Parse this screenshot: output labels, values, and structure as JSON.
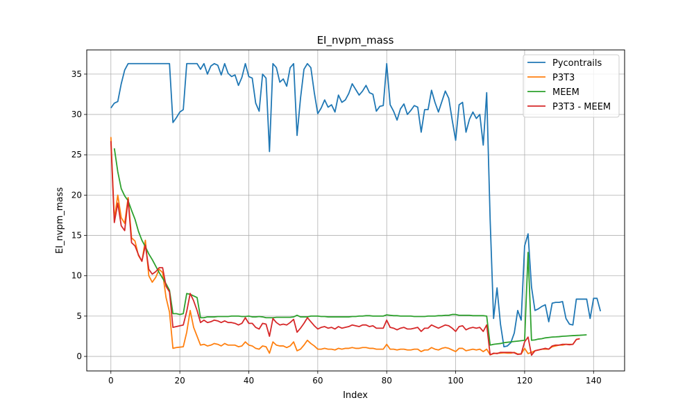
{
  "chart_data": {
    "type": "line",
    "title": "EI_nvpm_mass",
    "xlabel": "Index",
    "ylabel": "EI_nvpm_mass",
    "xlim": [
      -7,
      149
    ],
    "ylim": [
      -1.8,
      38.0
    ],
    "xticks": [
      0,
      20,
      40,
      60,
      80,
      100,
      120,
      140
    ],
    "yticks": [
      0,
      5,
      10,
      15,
      20,
      25,
      30,
      35
    ],
    "grid": true,
    "legend_position": "top-right",
    "series": [
      {
        "name": "Pycontrails",
        "color": "#1f77b4",
        "x_start": 0,
        "values": [
          30.8,
          31.4,
          31.6,
          33.8,
          35.5,
          36.3,
          36.3,
          36.3,
          36.3,
          36.3,
          36.3,
          36.3,
          36.3,
          36.3,
          36.3,
          36.3,
          36.3,
          36.3,
          29.0,
          29.6,
          30.3,
          30.6,
          36.3,
          36.3,
          36.3,
          36.3,
          35.6,
          36.3,
          35.0,
          36.0,
          36.3,
          36.1,
          34.9,
          36.3,
          35.1,
          34.7,
          34.9,
          33.6,
          34.6,
          36.3,
          34.7,
          34.5,
          31.4,
          30.4,
          35.0,
          34.5,
          25.4,
          36.3,
          35.8,
          34.0,
          34.4,
          33.5,
          35.8,
          36.3,
          27.4,
          32.0,
          35.6,
          36.3,
          35.8,
          32.7,
          30.1,
          30.8,
          31.8,
          30.9,
          31.2,
          30.3,
          32.4,
          31.5,
          31.8,
          32.6,
          33.8,
          33.1,
          32.4,
          32.9,
          33.6,
          32.7,
          32.5,
          30.4,
          31.0,
          31.1,
          36.3,
          31.2,
          30.4,
          29.3,
          30.7,
          31.3,
          30.0,
          30.5,
          31.1,
          30.9,
          27.8,
          30.6,
          30.6,
          33.0,
          31.5,
          30.3,
          31.6,
          32.9,
          32.0,
          29.3,
          26.8,
          31.2,
          31.5,
          27.8,
          29.4,
          30.3,
          29.5,
          30.0,
          26.2,
          32.7,
          17.0,
          4.7,
          8.5,
          4.0,
          1.2,
          1.3,
          1.7,
          2.9,
          5.7,
          4.5,
          13.7,
          15.2,
          8.6,
          5.7,
          5.9,
          6.2,
          6.4,
          4.3,
          6.6,
          6.7,
          6.7,
          6.8,
          4.7,
          4.0,
          3.9,
          7.1,
          7.1,
          7.1,
          7.1,
          4.7,
          7.2,
          7.2,
          5.6
        ]
      },
      {
        "name": "P3T3",
        "color": "#ff7f0e",
        "x_start": 0,
        "values": [
          27.2,
          17.0,
          20.0,
          17.2,
          16.5,
          19.7,
          14.7,
          14.3,
          12.5,
          11.8,
          14.4,
          10.0,
          9.2,
          9.8,
          10.8,
          10.4,
          7.3,
          5.5,
          1.0,
          1.1,
          1.15,
          1.2,
          3.0,
          5.7,
          3.6,
          2.5,
          1.4,
          1.5,
          1.3,
          1.4,
          1.6,
          1.5,
          1.3,
          1.6,
          1.4,
          1.4,
          1.4,
          1.2,
          1.3,
          1.8,
          1.4,
          1.3,
          1.0,
          0.9,
          1.3,
          1.2,
          0.4,
          1.8,
          1.4,
          1.3,
          1.3,
          1.1,
          1.3,
          1.8,
          0.7,
          0.9,
          1.4,
          2.0,
          1.6,
          1.3,
          0.9,
          0.9,
          1.0,
          0.9,
          0.9,
          0.8,
          1.0,
          0.9,
          1.0,
          1.0,
          1.1,
          1.0,
          1.0,
          1.1,
          1.1,
          1.0,
          1.0,
          0.9,
          0.9,
          0.9,
          1.5,
          0.9,
          0.9,
          0.8,
          0.9,
          0.9,
          0.8,
          0.8,
          0.9,
          0.9,
          0.6,
          0.8,
          0.8,
          1.1,
          0.9,
          0.8,
          1.0,
          1.1,
          1.0,
          0.8,
          0.6,
          1.0,
          1.0,
          0.7,
          0.8,
          0.9,
          0.8,
          0.9,
          0.6,
          0.9,
          0.2,
          0.35,
          0.4,
          0.4,
          0.45,
          0.4,
          0.4,
          0.5,
          0.3,
          0.3,
          1.0,
          0.35,
          0.5,
          0.7,
          0.8,
          0.9,
          0.9,
          0.9,
          1.2,
          1.3,
          1.4,
          1.4,
          1.5,
          1.5,
          1.5,
          2.1,
          2.2
        ]
      },
      {
        "name": "MEEM",
        "color": "#2ca02c",
        "x_start": 1,
        "values": [
          25.8,
          22.9,
          20.8,
          19.9,
          19.3,
          18.1,
          17.0,
          15.5,
          14.4,
          13.6,
          12.7,
          12.0,
          11.2,
          10.4,
          9.7,
          9.0,
          8.2,
          5.3,
          5.3,
          5.2,
          5.3,
          7.8,
          7.7,
          7.5,
          7.3,
          4.8,
          4.8,
          4.9,
          4.9,
          4.9,
          4.95,
          4.95,
          4.95,
          4.95,
          5.0,
          5.0,
          5.0,
          4.95,
          4.95,
          5.0,
          4.9,
          4.9,
          4.95,
          4.9,
          4.8,
          4.8,
          4.8,
          4.85,
          4.85,
          4.85,
          4.85,
          4.85,
          4.9,
          5.1,
          4.9,
          4.9,
          4.9,
          5.0,
          5.0,
          5.0,
          4.95,
          4.95,
          4.9,
          4.9,
          4.9,
          4.9,
          4.9,
          4.9,
          4.9,
          4.95,
          4.95,
          5.0,
          5.0,
          5.05,
          5.05,
          5.0,
          5.0,
          5.0,
          5.0,
          5.15,
          5.1,
          5.05,
          5.05,
          5.0,
          5.0,
          5.0,
          5.0,
          4.95,
          4.95,
          4.95,
          4.95,
          5.0,
          5.0,
          5.0,
          5.05,
          5.05,
          5.1,
          5.1,
          5.2,
          5.2,
          5.1,
          5.1,
          5.1,
          5.1,
          5.05,
          5.05,
          5.05,
          5.05,
          5.0,
          1.4,
          1.5,
          1.55,
          1.6,
          1.7,
          1.75,
          1.8,
          1.85,
          1.9,
          1.95,
          2.0,
          12.9,
          2.0,
          2.05,
          2.15,
          2.2,
          2.3,
          2.35,
          2.4,
          2.42,
          2.45,
          2.5,
          2.52,
          2.55,
          2.58,
          2.6,
          2.62,
          2.65,
          2.68
        ]
      },
      {
        "name": "P3T3 - MEEM",
        "color": "#d62728",
        "x_start": 0,
        "values": [
          26.7,
          16.6,
          19.0,
          16.2,
          15.6,
          19.5,
          14.1,
          13.7,
          12.6,
          11.8,
          13.8,
          10.8,
          10.2,
          10.5,
          11.0,
          11.0,
          8.7,
          8.0,
          3.6,
          3.7,
          3.8,
          3.9,
          5.6,
          7.8,
          6.9,
          5.7,
          4.2,
          4.5,
          4.2,
          4.3,
          4.5,
          4.4,
          4.2,
          4.4,
          4.2,
          4.2,
          4.1,
          3.9,
          4.1,
          4.8,
          4.1,
          4.1,
          3.6,
          3.4,
          4.1,
          4.0,
          2.5,
          4.7,
          4.2,
          3.9,
          4.0,
          3.9,
          4.2,
          4.6,
          3.0,
          3.5,
          4.1,
          4.8,
          4.3,
          3.8,
          3.4,
          3.6,
          3.7,
          3.5,
          3.6,
          3.4,
          3.7,
          3.5,
          3.6,
          3.7,
          3.9,
          3.8,
          3.7,
          3.9,
          3.9,
          3.7,
          3.8,
          3.5,
          3.5,
          3.5,
          4.5,
          3.6,
          3.5,
          3.3,
          3.5,
          3.6,
          3.4,
          3.4,
          3.5,
          3.6,
          3.1,
          3.5,
          3.5,
          3.9,
          3.7,
          3.5,
          3.7,
          3.9,
          3.8,
          3.5,
          3.1,
          3.7,
          3.8,
          3.3,
          3.5,
          3.6,
          3.5,
          3.6,
          3.1,
          3.9,
          0.2,
          0.4,
          0.35,
          0.5,
          0.5,
          0.5,
          0.5,
          0.45,
          0.25,
          0.3,
          1.8,
          2.4,
          0.15,
          0.7,
          0.8,
          0.9,
          1.0,
          0.9,
          1.3,
          1.4,
          1.4,
          1.5,
          1.5,
          1.45,
          1.5,
          2.1,
          2.2
        ]
      }
    ]
  }
}
